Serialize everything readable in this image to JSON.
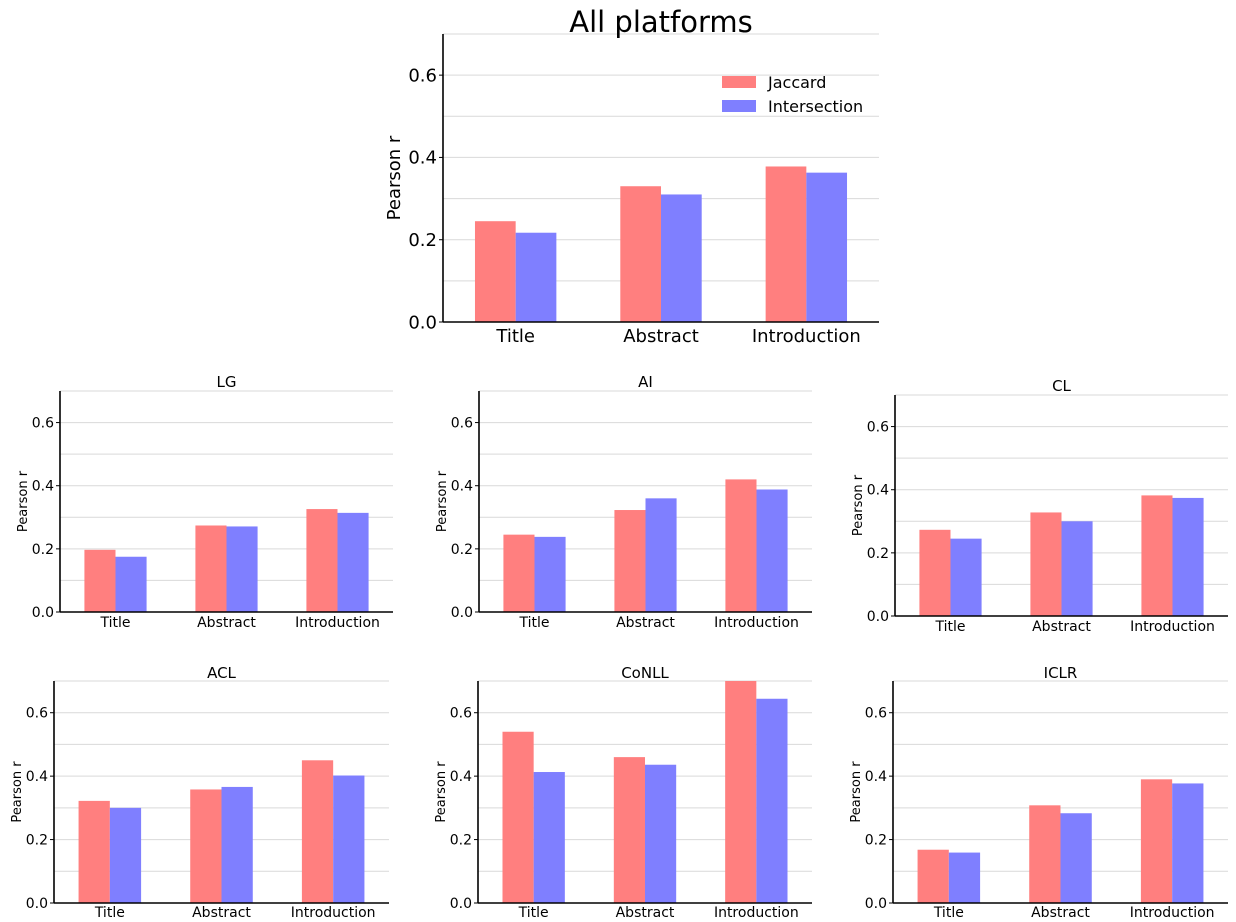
{
  "chart_data": [
    {
      "type": "bar",
      "title": "All platforms",
      "ylabel": "Pearson r",
      "xlabel": "",
      "categories": [
        "Title",
        "Abstract",
        "Introduction"
      ],
      "ylim": [
        0,
        0.7
      ],
      "yticks": [
        "0.0",
        "0.2",
        "0.4",
        "0.6"
      ],
      "grid": true,
      "legend": "top-right",
      "series": [
        {
          "name": "Jaccard",
          "color": "#ff7f7f",
          "values": [
            0.245,
            0.33,
            0.378
          ]
        },
        {
          "name": "Intersection",
          "color": "#7f7fff",
          "values": [
            0.217,
            0.31,
            0.363
          ]
        }
      ]
    },
    {
      "type": "bar",
      "title": "LG",
      "ylabel": "Pearson r",
      "xlabel": "",
      "categories": [
        "Title",
        "Abstract",
        "Introduction"
      ],
      "ylim": [
        0,
        0.7
      ],
      "yticks": [
        "0.0",
        "0.2",
        "0.4",
        "0.6"
      ],
      "grid": true,
      "series": [
        {
          "color": "#ff7f7f",
          "values": [
            0.197,
            0.274,
            0.326
          ]
        },
        {
          "color": "#7f7fff",
          "values": [
            0.175,
            0.271,
            0.314
          ]
        }
      ]
    },
    {
      "type": "bar",
      "title": "AI",
      "ylabel": "Pearson r",
      "xlabel": "",
      "categories": [
        "Title",
        "Abstract",
        "Introduction"
      ],
      "ylim": [
        0,
        0.7
      ],
      "yticks": [
        "0.0",
        "0.2",
        "0.4",
        "0.6"
      ],
      "grid": true,
      "series": [
        {
          "color": "#ff7f7f",
          "values": [
            0.245,
            0.323,
            0.42
          ]
        },
        {
          "color": "#7f7fff",
          "values": [
            0.238,
            0.36,
            0.388
          ]
        }
      ]
    },
    {
      "type": "bar",
      "title": "CL",
      "ylabel": "Pearson r",
      "xlabel": "",
      "categories": [
        "Title",
        "Abstract",
        "Introduction"
      ],
      "ylim": [
        0,
        0.7
      ],
      "yticks": [
        "0.0",
        "0.2",
        "0.4",
        "0.6"
      ],
      "grid": true,
      "series": [
        {
          "color": "#ff7f7f",
          "values": [
            0.273,
            0.328,
            0.382
          ]
        },
        {
          "color": "#7f7fff",
          "values": [
            0.245,
            0.3,
            0.374
          ]
        }
      ]
    },
    {
      "type": "bar",
      "title": "ACL",
      "ylabel": "Pearson r",
      "xlabel": "",
      "categories": [
        "Title",
        "Abstract",
        "Introduction"
      ],
      "ylim": [
        0,
        0.7
      ],
      "yticks": [
        "0.0",
        "0.2",
        "0.4",
        "0.6"
      ],
      "grid": true,
      "series": [
        {
          "color": "#ff7f7f",
          "values": [
            0.322,
            0.358,
            0.45
          ]
        },
        {
          "color": "#7f7fff",
          "values": [
            0.3,
            0.366,
            0.402
          ]
        }
      ]
    },
    {
      "type": "bar",
      "title": "CoNLL",
      "ylabel": "Pearson r",
      "xlabel": "",
      "categories": [
        "Title",
        "Abstract",
        "Introduction"
      ],
      "ylim": [
        0,
        0.7
      ],
      "yticks": [
        "0.0",
        "0.2",
        "0.4",
        "0.6"
      ],
      "grid": true,
      "series": [
        {
          "color": "#ff7f7f",
          "values": [
            0.54,
            0.46,
            0.7
          ]
        },
        {
          "color": "#7f7fff",
          "values": [
            0.413,
            0.436,
            0.644
          ]
        }
      ]
    },
    {
      "type": "bar",
      "title": "ICLR",
      "ylabel": "Pearson r",
      "xlabel": "",
      "categories": [
        "Title",
        "Abstract",
        "Introduction"
      ],
      "ylim": [
        0,
        0.7
      ],
      "yticks": [
        "0.0",
        "0.2",
        "0.4",
        "0.6"
      ],
      "grid": true,
      "series": [
        {
          "color": "#ff7f7f",
          "values": [
            0.168,
            0.308,
            0.39
          ]
        },
        {
          "color": "#7f7fff",
          "values": [
            0.159,
            0.283,
            0.377
          ]
        }
      ]
    }
  ]
}
